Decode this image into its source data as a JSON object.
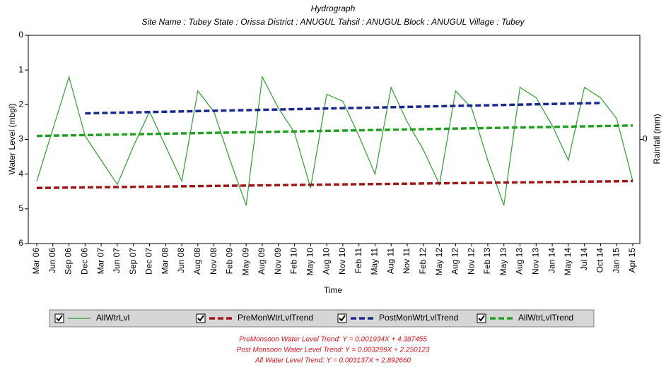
{
  "chart_data": {
    "type": "line",
    "title": "Hydrograph",
    "subtitle": "Site Name : Tubey  State : Orissa District : ANUGUL  Tahsil : ANUGUL  Block : ANUGUL Village : Tubey",
    "x_label": "Time",
    "y_label": "Water Level (mbgl)",
    "y2_label": "Rainfall (mm)",
    "categories": [
      "Mar 06",
      "Jun 06",
      "Sep 06",
      "Dec 06",
      "Mar 07",
      "Jun 07",
      "Sep 07",
      "Dec 07",
      "Mar 08",
      "Jun 08",
      "Aug 08",
      "Nov 08",
      "Feb 09",
      "May 09",
      "Aug 09",
      "Nov 09",
      "Feb 10",
      "May 10",
      "Aug 10",
      "Nov 10",
      "Feb 11",
      "May 11",
      "Aug 11",
      "Nov 11",
      "Feb 12",
      "May 12",
      "Aug 12",
      "Nov 12",
      "Feb 13",
      "May 13",
      "Aug 13",
      "Nov 13",
      "Jan 14",
      "May 14",
      "Jul 14",
      "Oct 14",
      "Jan 15",
      "Apr 15"
    ],
    "series": [
      {
        "name": "AllWtrLvl",
        "color": "#2ca02c",
        "dashed": false,
        "values": [
          4.2,
          2.7,
          1.2,
          2.9,
          3.6,
          4.3,
          3.2,
          2.2,
          3.2,
          4.2,
          1.6,
          2.2,
          3.6,
          4.9,
          1.2,
          2.1,
          2.8,
          4.4,
          1.7,
          1.9,
          2.9,
          4.0,
          1.5,
          2.5,
          3.3,
          4.3,
          1.6,
          2.1,
          3.6,
          4.9,
          1.5,
          1.8,
          2.6,
          3.6,
          1.5,
          1.8,
          2.4,
          4.2
        ]
      },
      {
        "name": "PreMonWtrLvlTrend",
        "color": "#a01818",
        "dashed": true,
        "x": [
          "Mar 06",
          "Apr 15"
        ],
        "values": [
          4.4,
          4.2
        ]
      },
      {
        "name": "PostMonWtrLvlTrend",
        "color": "#1a2a8c",
        "dashed": true,
        "x": [
          "Dec 06",
          "Oct 14"
        ],
        "values": [
          2.25,
          1.95
        ]
      },
      {
        "name": "AllWtrLvlTrend",
        "color": "#22a022",
        "dashed": true,
        "x": [
          "Mar 06",
          "Apr 15"
        ],
        "values": [
          2.9,
          2.6
        ]
      }
    ],
    "ylim": [
      0,
      6
    ],
    "yticks": [
      0,
      1,
      2,
      3,
      4,
      5,
      6
    ],
    "y_inverted": true,
    "y2lim": [
      -1,
      1
    ],
    "y2ticks": [
      0
    ],
    "annotations": [
      "PreMonsoon Water Level Trend: Y = 0.001934X + 4.387455",
      "Post Monsoon Water Level Trend: Y = 0.003299X + 2.250123",
      "All Water Level Trend: Y = 0.003137X + 2.892660"
    ]
  }
}
